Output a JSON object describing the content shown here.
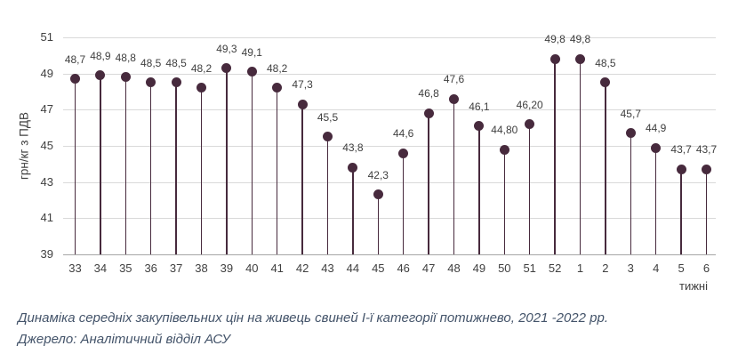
{
  "chart_data": {
    "type": "lollipop",
    "title": "Динаміка середніх закупівельних цін на живець свиней І-ї категорії потижнево, 2021 -2022 рр.",
    "source": "Джерело: Аналітичний відділ АСУ",
    "xlabel": "тижні",
    "ylabel": "грн/кг з ПДВ",
    "ylim": [
      39,
      51
    ],
    "yticks": [
      39,
      41,
      43,
      45,
      47,
      49,
      51
    ],
    "grid": true,
    "legend": "none",
    "categories": [
      "33",
      "34",
      "35",
      "36",
      "37",
      "38",
      "39",
      "40",
      "41",
      "42",
      "43",
      "44",
      "45",
      "46",
      "47",
      "48",
      "49",
      "50",
      "51",
      "52",
      "1",
      "2",
      "3",
      "4",
      "5",
      "6"
    ],
    "values": [
      48.7,
      48.9,
      48.8,
      48.5,
      48.5,
      48.2,
      49.3,
      49.1,
      48.2,
      47.3,
      45.5,
      43.8,
      42.3,
      44.6,
      46.8,
      47.6,
      46.1,
      44.8,
      46.2,
      49.8,
      49.8,
      48.5,
      45.7,
      44.9,
      43.7,
      43.7
    ],
    "value_labels": [
      "48,7",
      "48,9",
      "48,8",
      "48,5",
      "48,5",
      "48,2",
      "49,3",
      "49,1",
      "48,2",
      "47,3",
      "45,5",
      "43,8",
      "42,3",
      "44,6",
      "46,8",
      "47,6",
      "46,1",
      "44,80",
      "46,20",
      "49,8",
      "49,8",
      "48,5",
      "45,7",
      "44,9",
      "43,7",
      "43,7"
    ],
    "colors": {
      "marker": "#472A3D",
      "gridline": "#D9D9D9",
      "axis_line": "#A6A6A6",
      "tick_text": "#404040",
      "data_label_text": "#3F3F3F",
      "caption_text": "#44546A",
      "background": "#FFFFFF"
    }
  }
}
